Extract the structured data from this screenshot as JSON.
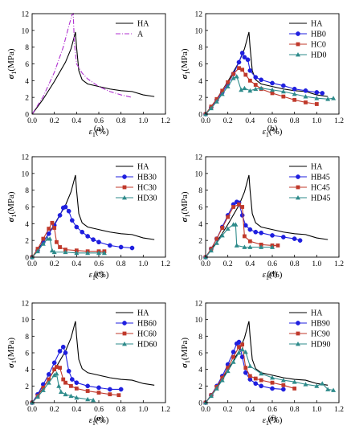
{
  "chart_data": [
    {
      "panel_label": "(a)",
      "type": "line",
      "xlabel_sym": "ε",
      "xlabel_sub": "1",
      "xlabel_unit": "(%)",
      "ylabel_sym": "σ",
      "ylabel_sub": "1",
      "ylabel_unit": "(MPa)",
      "xlim": [
        0,
        1.2
      ],
      "ylim": [
        0,
        12
      ],
      "xticks": [
        "0.0",
        "0.2",
        "0.4",
        "0.6",
        "0.8",
        "1.0",
        "1.2"
      ],
      "yticks": [
        "0",
        "2",
        "4",
        "6",
        "8",
        "10",
        "12"
      ],
      "legend_position": "top-right",
      "series": [
        {
          "name": "HA",
          "color": "#000000",
          "marker": "none",
          "dash": "none",
          "x": [
            0,
            0.1,
            0.2,
            0.3,
            0.35,
            0.38,
            0.39,
            0.4,
            0.42,
            0.45,
            0.5,
            0.6,
            0.7,
            0.8,
            0.9,
            1.0,
            1.1
          ],
          "y": [
            0,
            1.8,
            3.9,
            6.2,
            7.8,
            9.3,
            9.8,
            8.0,
            5.2,
            4.1,
            3.6,
            3.3,
            3.0,
            2.8,
            2.7,
            2.3,
            2.1
          ]
        },
        {
          "name": "A",
          "color": "#b030d0",
          "marker": "none",
          "dash": "6,2,1,2",
          "x": [
            0,
            0.1,
            0.2,
            0.28,
            0.33,
            0.36,
            0.37,
            0.38,
            0.4,
            0.45,
            0.5,
            0.6,
            0.7,
            0.8,
            0.9
          ],
          "y": [
            0,
            2.1,
            5.0,
            8.0,
            10.5,
            11.9,
            12.0,
            8.5,
            6.0,
            4.9,
            4.2,
            3.3,
            2.7,
            2.3,
            2.0
          ]
        }
      ]
    },
    {
      "panel_label": "(b)",
      "type": "line",
      "xlabel_sym": "ε",
      "xlabel_sub": "1",
      "xlabel_unit": "(%)",
      "ylabel_sym": "σ",
      "ylabel_sub": "1",
      "ylabel_unit": "(MPa)",
      "xlim": [
        0,
        1.2
      ],
      "ylim": [
        0,
        12
      ],
      "xticks": [
        "0.0",
        "0.2",
        "0.4",
        "0.6",
        "0.8",
        "1.0",
        "1.2"
      ],
      "yticks": [
        "0",
        "2",
        "4",
        "6",
        "8",
        "10",
        "12"
      ],
      "legend_position": "top-right",
      "series": [
        {
          "name": "HA",
          "color": "#000000",
          "marker": "none",
          "x": [
            0,
            0.1,
            0.2,
            0.3,
            0.35,
            0.38,
            0.39,
            0.4,
            0.42,
            0.45,
            0.5,
            0.6,
            0.7,
            0.8,
            0.9,
            1.0,
            1.1
          ],
          "y": [
            0,
            1.8,
            3.9,
            6.2,
            7.8,
            9.3,
            9.8,
            8.0,
            5.2,
            4.1,
            3.6,
            3.3,
            3.0,
            2.8,
            2.7,
            2.3,
            2.1
          ]
        },
        {
          "name": "HB0",
          "color": "#1f1fdf",
          "marker": "circle",
          "x": [
            0,
            0.05,
            0.1,
            0.15,
            0.2,
            0.25,
            0.3,
            0.33,
            0.35,
            0.38,
            0.4,
            0.45,
            0.5,
            0.6,
            0.7,
            0.8,
            0.9,
            1.0,
            1.05
          ],
          "y": [
            0,
            0.8,
            1.7,
            2.6,
            3.6,
            4.8,
            6.2,
            7.3,
            6.8,
            6.5,
            5.2,
            4.4,
            4.1,
            3.7,
            3.4,
            3.0,
            2.8,
            2.6,
            2.5
          ]
        },
        {
          "name": "HC0",
          "color": "#c0392b",
          "marker": "square",
          "x": [
            0,
            0.05,
            0.1,
            0.15,
            0.2,
            0.25,
            0.3,
            0.33,
            0.36,
            0.4,
            0.45,
            0.5,
            0.6,
            0.7,
            0.8,
            0.9,
            1.0
          ],
          "y": [
            0,
            0.9,
            1.8,
            2.8,
            3.8,
            4.8,
            5.5,
            5.3,
            4.7,
            4.0,
            3.5,
            3.0,
            2.5,
            2.1,
            1.7,
            1.4,
            1.2
          ]
        },
        {
          "name": "HD0",
          "color": "#2e8b8b",
          "marker": "triangle",
          "x": [
            0,
            0.05,
            0.1,
            0.15,
            0.2,
            0.25,
            0.28,
            0.32,
            0.35,
            0.4,
            0.45,
            0.5,
            0.6,
            0.7,
            0.8,
            0.9,
            1.0,
            1.1,
            1.15
          ],
          "y": [
            0,
            0.7,
            1.5,
            2.4,
            3.3,
            4.3,
            4.5,
            2.9,
            3.1,
            2.8,
            3.0,
            3.1,
            2.9,
            2.7,
            2.4,
            2.1,
            1.9,
            1.8,
            1.9
          ]
        }
      ]
    },
    {
      "panel_label": "(c)",
      "type": "line",
      "xlabel_sym": "ε",
      "xlabel_sub": "1",
      "xlabel_unit": "(%)",
      "ylabel_sym": "σ",
      "ylabel_sub": "1",
      "ylabel_unit": "(MPa)",
      "xlim": [
        0,
        1.2
      ],
      "ylim": [
        0,
        12
      ],
      "xticks": [
        "0.0",
        "0.2",
        "0.4",
        "0.6",
        "0.8",
        "1.0",
        "1.2"
      ],
      "yticks": [
        "0",
        "2",
        "4",
        "6",
        "8",
        "10",
        "12"
      ],
      "legend_position": "top-right",
      "series": [
        {
          "name": "HA",
          "color": "#000000",
          "marker": "none",
          "x": [
            0,
            0.1,
            0.2,
            0.3,
            0.35,
            0.38,
            0.39,
            0.4,
            0.42,
            0.45,
            0.5,
            0.6,
            0.7,
            0.8,
            0.9,
            1.0,
            1.1
          ],
          "y": [
            0,
            1.8,
            3.9,
            6.2,
            7.8,
            9.3,
            9.8,
            8.0,
            5.2,
            4.1,
            3.6,
            3.3,
            3.0,
            2.8,
            2.7,
            2.3,
            2.1
          ]
        },
        {
          "name": "HB30",
          "color": "#1f1fdf",
          "marker": "circle",
          "x": [
            0,
            0.05,
            0.1,
            0.15,
            0.2,
            0.25,
            0.28,
            0.3,
            0.33,
            0.36,
            0.4,
            0.45,
            0.5,
            0.55,
            0.6,
            0.7,
            0.8,
            0.9
          ],
          "y": [
            0,
            0.8,
            1.8,
            2.8,
            3.8,
            5.0,
            5.9,
            6.0,
            5.5,
            4.4,
            3.6,
            3.0,
            2.5,
            2.1,
            1.8,
            1.4,
            1.2,
            1.1
          ]
        },
        {
          "name": "HC30",
          "color": "#c0392b",
          "marker": "square",
          "x": [
            0,
            0.05,
            0.1,
            0.15,
            0.18,
            0.2,
            0.22,
            0.25,
            0.3,
            0.4,
            0.5,
            0.6,
            0.65
          ],
          "y": [
            0,
            1.0,
            2.2,
            3.4,
            4.1,
            3.5,
            1.8,
            1.2,
            0.9,
            0.8,
            0.7,
            0.7,
            0.7
          ]
        },
        {
          "name": "HD30",
          "color": "#2e8b8b",
          "marker": "triangle",
          "x": [
            0,
            0.05,
            0.1,
            0.14,
            0.16,
            0.18,
            0.2,
            0.3,
            0.4,
            0.5,
            0.6,
            0.65
          ],
          "y": [
            0,
            0.7,
            1.6,
            2.2,
            2.2,
            0.8,
            0.6,
            0.6,
            0.5,
            0.5,
            0.5,
            0.5
          ]
        }
      ]
    },
    {
      "panel_label": "(d)",
      "type": "line",
      "xlabel_sym": "ε",
      "xlabel_sub": "1",
      "xlabel_unit": "(%)",
      "ylabel_sym": "σ",
      "ylabel_sub": "1",
      "ylabel_unit": "(MPa)",
      "xlim": [
        0,
        1.2
      ],
      "ylim": [
        0,
        12
      ],
      "xticks": [
        "0.0",
        "0.2",
        "0.4",
        "0.6",
        "0.8",
        "1.0",
        "1.2"
      ],
      "yticks": [
        "0",
        "2",
        "4",
        "6",
        "8",
        "10",
        "12"
      ],
      "legend_position": "top-right",
      "series": [
        {
          "name": "HA",
          "color": "#000000",
          "marker": "none",
          "x": [
            0,
            0.1,
            0.2,
            0.3,
            0.35,
            0.38,
            0.39,
            0.4,
            0.42,
            0.45,
            0.5,
            0.6,
            0.7,
            0.8,
            0.9,
            1.0,
            1.1
          ],
          "y": [
            0,
            1.8,
            3.9,
            6.2,
            7.8,
            9.3,
            9.8,
            8.0,
            5.2,
            4.1,
            3.6,
            3.3,
            3.0,
            2.8,
            2.7,
            2.3,
            2.1
          ]
        },
        {
          "name": "HB45",
          "color": "#1f1fdf",
          "marker": "circle",
          "x": [
            0,
            0.05,
            0.1,
            0.15,
            0.2,
            0.25,
            0.28,
            0.3,
            0.33,
            0.36,
            0.4,
            0.45,
            0.5,
            0.6,
            0.7,
            0.8,
            0.85
          ],
          "y": [
            0,
            1.0,
            2.2,
            3.6,
            5.0,
            6.3,
            6.6,
            6.5,
            5.0,
            3.8,
            3.3,
            3.0,
            2.9,
            2.6,
            2.4,
            2.2,
            2.0
          ]
        },
        {
          "name": "HC45",
          "color": "#c0392b",
          "marker": "square",
          "x": [
            0,
            0.05,
            0.1,
            0.15,
            0.2,
            0.25,
            0.3,
            0.33,
            0.35,
            0.4,
            0.5,
            0.6,
            0.65
          ],
          "y": [
            0,
            1.0,
            2.2,
            3.5,
            4.8,
            6.0,
            6.3,
            6.0,
            2.5,
            1.9,
            1.5,
            1.4,
            1.4
          ]
        },
        {
          "name": "HD45",
          "color": "#2e8b8b",
          "marker": "triangle",
          "x": [
            0,
            0.05,
            0.1,
            0.15,
            0.2,
            0.25,
            0.27,
            0.28,
            0.35,
            0.4,
            0.5,
            0.6
          ],
          "y": [
            0,
            0.8,
            1.7,
            2.6,
            3.4,
            3.9,
            3.9,
            1.4,
            1.2,
            1.2,
            1.2,
            1.2
          ]
        }
      ]
    },
    {
      "panel_label": "(e)",
      "type": "line",
      "xlabel_sym": "ε",
      "xlabel_sub": "1",
      "xlabel_unit": "(%)",
      "ylabel_sym": "σ",
      "ylabel_sub": "1",
      "ylabel_unit": "(MPa)",
      "xlim": [
        0,
        1.2
      ],
      "ylim": [
        0,
        12
      ],
      "xticks": [
        "0.0",
        "0.2",
        "0.4",
        "0.6",
        "0.8",
        "1.0",
        "1.2"
      ],
      "yticks": [
        "0",
        "2",
        "4",
        "6",
        "8",
        "10",
        "12"
      ],
      "legend_position": "top-right",
      "series": [
        {
          "name": "HA",
          "color": "#000000",
          "marker": "none",
          "x": [
            0,
            0.1,
            0.2,
            0.3,
            0.35,
            0.38,
            0.39,
            0.4,
            0.42,
            0.45,
            0.5,
            0.6,
            0.7,
            0.8,
            0.9,
            1.0,
            1.1
          ],
          "y": [
            0,
            1.8,
            3.9,
            6.2,
            7.8,
            9.3,
            9.8,
            8.0,
            5.2,
            4.1,
            3.6,
            3.3,
            3.0,
            2.8,
            2.7,
            2.3,
            2.1
          ]
        },
        {
          "name": "HB60",
          "color": "#1f1fdf",
          "marker": "circle",
          "x": [
            0,
            0.05,
            0.1,
            0.15,
            0.2,
            0.25,
            0.28,
            0.3,
            0.33,
            0.36,
            0.4,
            0.5,
            0.6,
            0.7,
            0.8
          ],
          "y": [
            0,
            1.0,
            2.2,
            3.4,
            4.8,
            6.2,
            6.7,
            6.0,
            3.8,
            2.8,
            2.4,
            2.0,
            1.8,
            1.6,
            1.6
          ]
        },
        {
          "name": "HC60",
          "color": "#c0392b",
          "marker": "square",
          "x": [
            0,
            0.05,
            0.1,
            0.15,
            0.2,
            0.22,
            0.25,
            0.28,
            0.3,
            0.35,
            0.4,
            0.5,
            0.6,
            0.7,
            0.78
          ],
          "y": [
            0,
            0.8,
            1.8,
            2.8,
            4.0,
            4.3,
            4.2,
            2.8,
            2.4,
            2.0,
            1.7,
            1.4,
            1.2,
            1.0,
            0.9
          ]
        },
        {
          "name": "HD60",
          "color": "#2e8b8b",
          "marker": "triangle",
          "x": [
            0,
            0.05,
            0.1,
            0.15,
            0.2,
            0.22,
            0.24,
            0.26,
            0.3,
            0.35,
            0.4,
            0.5,
            0.55
          ],
          "y": [
            0,
            0.7,
            1.5,
            2.4,
            3.3,
            3.5,
            2.0,
            1.3,
            1.0,
            0.8,
            0.6,
            0.4,
            0.3
          ]
        }
      ]
    },
    {
      "panel_label": "(f)",
      "type": "line",
      "xlabel_sym": "ε",
      "xlabel_sub": "1",
      "xlabel_unit": "(%)",
      "ylabel_sym": "σ",
      "ylabel_sub": "1",
      "ylabel_unit": "(MPa)",
      "xlim": [
        0,
        1.2
      ],
      "ylim": [
        0,
        12
      ],
      "xticks": [
        "0.0",
        "0.2",
        "0.4",
        "0.6",
        "0.8",
        "1.0",
        "1.2"
      ],
      "yticks": [
        "0",
        "2",
        "4",
        "6",
        "8",
        "10",
        "12"
      ],
      "legend_position": "top-right",
      "series": [
        {
          "name": "HA",
          "color": "#000000",
          "marker": "none",
          "x": [
            0,
            0.1,
            0.2,
            0.3,
            0.35,
            0.38,
            0.39,
            0.4,
            0.42,
            0.45,
            0.5,
            0.6,
            0.7,
            0.8,
            0.9,
            1.0,
            1.1
          ],
          "y": [
            0,
            1.8,
            3.9,
            6.2,
            7.8,
            9.3,
            9.8,
            8.0,
            5.2,
            4.1,
            3.6,
            3.3,
            3.0,
            2.8,
            2.7,
            2.3,
            2.1
          ]
        },
        {
          "name": "HB90",
          "color": "#1f1fdf",
          "marker": "circle",
          "x": [
            0,
            0.05,
            0.1,
            0.15,
            0.2,
            0.25,
            0.28,
            0.3,
            0.33,
            0.36,
            0.4,
            0.45,
            0.5,
            0.6,
            0.7
          ],
          "y": [
            0,
            0.9,
            2.0,
            3.2,
            4.6,
            6.1,
            7.1,
            7.3,
            5.5,
            3.6,
            2.8,
            2.3,
            2.0,
            1.7,
            1.6
          ]
        },
        {
          "name": "HC90",
          "color": "#c0392b",
          "marker": "square",
          "x": [
            0,
            0.05,
            0.1,
            0.15,
            0.2,
            0.25,
            0.3,
            0.33,
            0.36,
            0.4,
            0.45,
            0.5,
            0.6,
            0.7,
            0.8
          ],
          "y": [
            0,
            0.9,
            1.9,
            3.0,
            4.2,
            5.5,
            6.7,
            7.0,
            4.2,
            3.2,
            2.9,
            2.7,
            2.4,
            2.1,
            1.7
          ]
        },
        {
          "name": "HD90",
          "color": "#2e8b8b",
          "marker": "triangle",
          "x": [
            0,
            0.05,
            0.1,
            0.15,
            0.2,
            0.25,
            0.3,
            0.33,
            0.36,
            0.4,
            0.5,
            0.6,
            0.7,
            0.8,
            0.9,
            1.0,
            1.05,
            1.1,
            1.15
          ],
          "y": [
            0,
            0.8,
            1.7,
            2.7,
            3.8,
            4.9,
            6.0,
            6.4,
            6.1,
            4.4,
            3.5,
            3.0,
            2.7,
            2.5,
            2.2,
            2.0,
            2.3,
            1.6,
            1.5
          ]
        }
      ]
    }
  ]
}
